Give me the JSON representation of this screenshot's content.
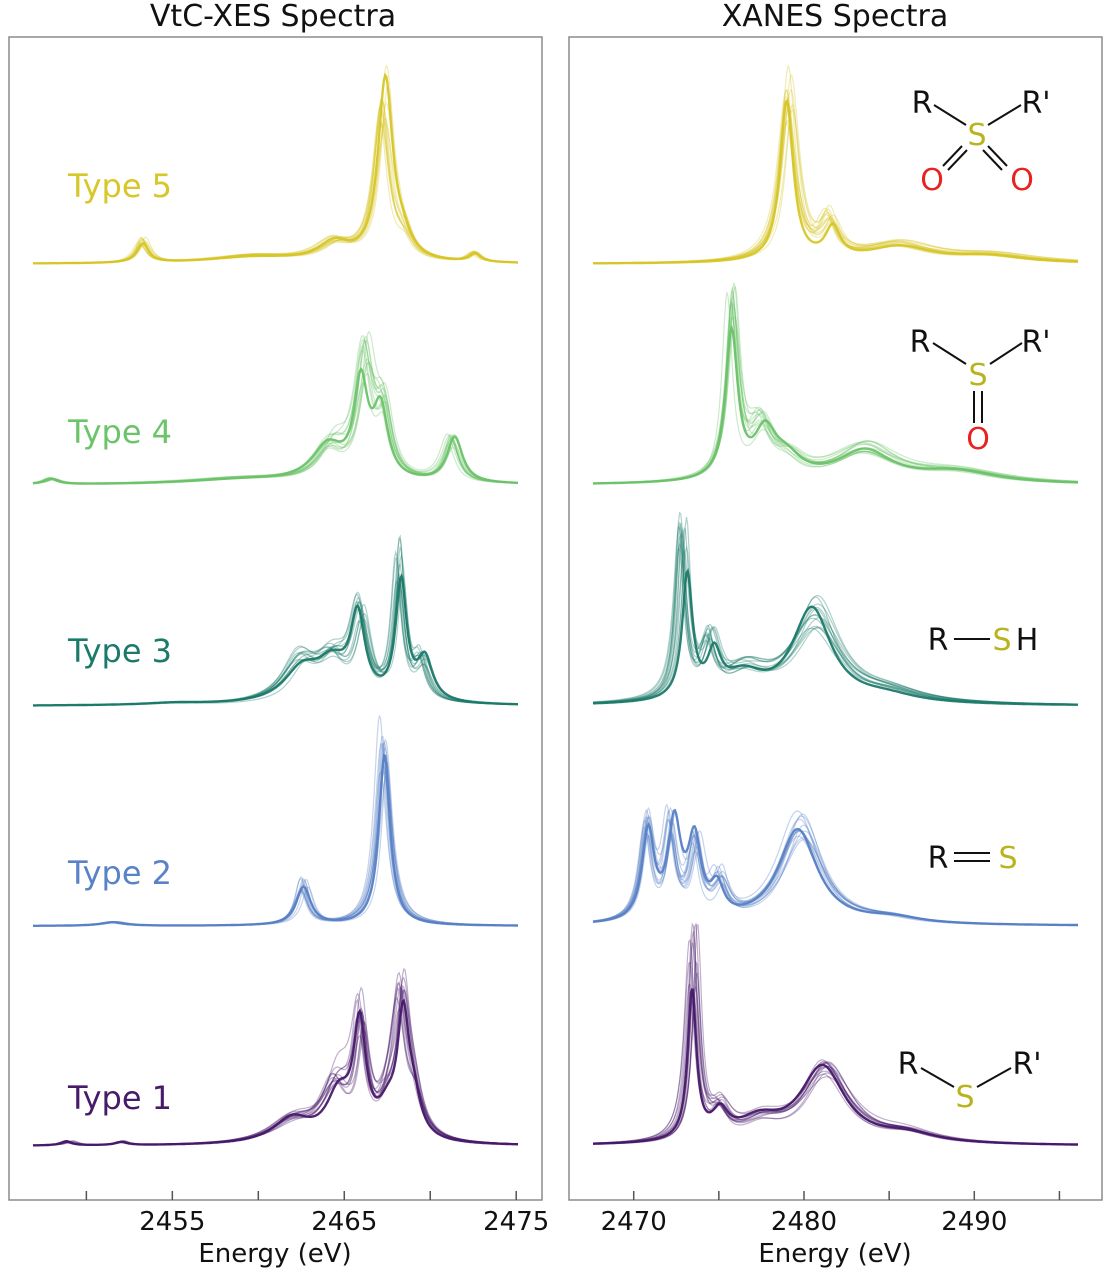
{
  "chart_data": [
    {
      "type": "line",
      "title": "VtC-XES Spectra",
      "xlabel": "Energy (eV)",
      "xlim": [
        2445.5,
        2476.5
      ],
      "xticks": [
        2450,
        2455,
        2460,
        2465,
        2470,
        2475
      ],
      "xtick_labels": [
        "2455",
        "2465",
        "2475"
      ],
      "series": [
        {
          "name": "Type 5",
          "color": "#d7c729",
          "peaks": [
            [
              2453.2,
              0.12,
              0.4
            ],
            [
              2459.8,
              0.04,
              3.0
            ],
            [
              2464.5,
              0.1,
              1.2
            ],
            [
              2467.3,
              0.9,
              0.55
            ],
            [
              2468.5,
              0.1,
              0.6
            ],
            [
              2472.5,
              0.05,
              0.4
            ]
          ]
        },
        {
          "name": "Type 4",
          "color": "#6cc46a",
          "peaks": [
            [
              2448.0,
              0.03,
              0.5
            ],
            [
              2459.0,
              0.03,
              4.0
            ],
            [
              2464.2,
              0.18,
              1.0
            ],
            [
              2466.2,
              0.6,
              0.55
            ],
            [
              2467.2,
              0.35,
              0.5
            ],
            [
              2471.2,
              0.22,
              0.5
            ]
          ]
        },
        {
          "name": "Type 3",
          "color": "#1c7a6a",
          "peaks": [
            [
              2455.0,
              0.01,
              2.0
            ],
            [
              2462.5,
              0.22,
              1.2
            ],
            [
              2464.3,
              0.2,
              1.0
            ],
            [
              2466.0,
              0.42,
              0.55
            ],
            [
              2468.2,
              0.75,
              0.35
            ],
            [
              2469.5,
              0.2,
              0.5
            ]
          ]
        },
        {
          "name": "Type 2",
          "color": "#5a82c6",
          "peaks": [
            [
              2451.5,
              0.02,
              0.8
            ],
            [
              2462.7,
              0.22,
              0.45
            ],
            [
              2467.3,
              1.0,
              0.45
            ]
          ]
        },
        {
          "name": "Type 1",
          "color": "#481a6a",
          "peaks": [
            [
              2449.0,
              0.02,
              0.4
            ],
            [
              2452.0,
              0.02,
              0.4
            ],
            [
              2462.0,
              0.12,
              1.6
            ],
            [
              2464.5,
              0.3,
              0.9
            ],
            [
              2466.0,
              0.58,
              0.45
            ],
            [
              2467.5,
              0.15,
              0.6
            ],
            [
              2468.3,
              0.66,
              0.45
            ],
            [
              2469.0,
              0.2,
              0.6
            ]
          ]
        }
      ]
    },
    {
      "type": "line",
      "title": "XANES Spectra",
      "xlabel": "Energy (eV)",
      "xlim": [
        2466.2,
        2497.5
      ],
      "xticks": [
        2470,
        2475,
        2480,
        2485,
        2490,
        2495
      ],
      "xtick_labels": [
        "2470",
        "2480",
        "2490"
      ],
      "series": [
        {
          "name": "Type 5",
          "color": "#d7c729",
          "peaks": [
            [
              2479.2,
              0.95,
              0.55
            ],
            [
              2481.5,
              0.2,
              0.6
            ],
            [
              2485.5,
              0.1,
              2.5
            ],
            [
              2491.0,
              0.04,
              3.0
            ]
          ]
        },
        {
          "name": "Type 4",
          "color": "#6cc46a",
          "peaks": [
            [
              2475.7,
              0.95,
              0.4
            ],
            [
              2477.5,
              0.28,
              0.8
            ],
            [
              2479.0,
              0.1,
              1.0
            ],
            [
              2483.5,
              0.18,
              2.2
            ],
            [
              2489.0,
              0.06,
              3.0
            ]
          ]
        },
        {
          "name": "Type 3",
          "color": "#1c7a6a",
          "peaks": [
            [
              2472.9,
              0.85,
              0.35
            ],
            [
              2474.5,
              0.28,
              0.5
            ],
            [
              2476.5,
              0.15,
              1.5
            ],
            [
              2480.7,
              0.5,
              1.6
            ],
            [
              2485.0,
              0.05,
              2.5
            ]
          ]
        },
        {
          "name": "Type 2",
          "color": "#5a82c6",
          "peaks": [
            [
              2470.8,
              0.5,
              0.45
            ],
            [
              2472.2,
              0.45,
              0.4
            ],
            [
              2473.7,
              0.38,
              0.45
            ],
            [
              2475.0,
              0.2,
              0.5
            ],
            [
              2479.8,
              0.55,
              1.4
            ],
            [
              2485.0,
              0.03,
              2.0
            ]
          ]
        },
        {
          "name": "Type 1",
          "color": "#481a6a",
          "peaks": [
            [
              2473.5,
              1.0,
              0.35
            ],
            [
              2475.0,
              0.15,
              0.6
            ],
            [
              2477.5,
              0.1,
              1.5
            ],
            [
              2481.2,
              0.38,
              1.7
            ],
            [
              2486.0,
              0.05,
              2.0
            ]
          ]
        }
      ]
    }
  ],
  "structures": [
    {
      "left": "R",
      "right": "R'",
      "center": "S",
      "bottom": "O",
      "bottom2": "O"
    },
    {
      "left": "R",
      "right": "R'",
      "center": "S",
      "bottom": "O"
    },
    {
      "left": "R",
      "right": "H",
      "center": "S"
    },
    {
      "left": "R",
      "center": "S"
    },
    {
      "left": "R",
      "right": "R'",
      "center": "S"
    }
  ],
  "colors": {
    "sulfur": "#b9b41e",
    "oxygen": "#e8231f",
    "atom": "#111111",
    "frame": "#8c8c8c"
  }
}
